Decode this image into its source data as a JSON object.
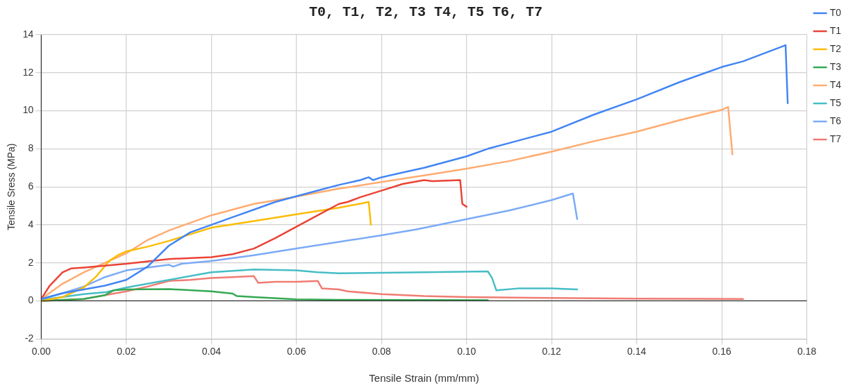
{
  "chart_data": {
    "type": "line",
    "title": "T0, T1, T2, T3 T4, T5 T6, T7",
    "xlabel": "Tensile Strain (mm/mm)",
    "ylabel": "Tensile Sress (MPa)",
    "xlim": [
      0,
      0.18
    ],
    "xticks": [
      {
        "value": 0,
        "label": "0.00"
      },
      {
        "value": 0.02,
        "label": "0.02"
      },
      {
        "value": 0.04,
        "label": "0.04"
      },
      {
        "value": 0.06,
        "label": "0.06"
      },
      {
        "value": 0.08,
        "label": "0.08"
      },
      {
        "value": 0.1,
        "label": "0.10"
      },
      {
        "value": 0.12,
        "label": "0.12"
      },
      {
        "value": 0.14,
        "label": "0.14"
      },
      {
        "value": 0.16,
        "label": "0.16"
      },
      {
        "value": 0.18,
        "label": "0.18"
      }
    ],
    "ylim": [
      -2,
      14
    ],
    "yticks": [
      -2,
      0,
      2,
      4,
      6,
      8,
      10,
      12,
      14
    ],
    "grid": true,
    "legend": "right",
    "marker": "none",
    "line_style": "solid",
    "series": [
      {
        "name": "T0",
        "color": "#4285f4",
        "x": [
          0,
          0.005,
          0.01,
          0.015,
          0.02,
          0.025,
          0.03,
          0.035,
          0.04,
          0.045,
          0.05,
          0.055,
          0.06,
          0.065,
          0.07,
          0.075,
          0.077,
          0.078,
          0.08,
          0.085,
          0.09,
          0.095,
          0.1,
          0.105,
          0.11,
          0.115,
          0.12,
          0.13,
          0.14,
          0.15,
          0.16,
          0.165,
          0.175,
          0.1755
        ],
        "values": [
          0.1,
          0.4,
          0.6,
          0.8,
          1.1,
          1.8,
          2.9,
          3.6,
          4.0,
          4.4,
          4.8,
          5.2,
          5.5,
          5.8,
          6.1,
          6.35,
          6.5,
          6.35,
          6.5,
          6.75,
          7.0,
          7.3,
          7.6,
          8.0,
          8.3,
          8.6,
          8.9,
          9.8,
          10.6,
          11.5,
          12.3,
          12.6,
          13.45,
          10.4
        ]
      },
      {
        "name": "T1",
        "color": "#ea4335",
        "x": [
          0,
          0.002,
          0.005,
          0.007,
          0.01,
          0.015,
          0.02,
          0.03,
          0.04,
          0.045,
          0.05,
          0.055,
          0.06,
          0.065,
          0.07,
          0.072,
          0.075,
          0.08,
          0.085,
          0.09,
          0.092,
          0.0985,
          0.099,
          0.1
        ],
        "values": [
          0.1,
          0.8,
          1.5,
          1.7,
          1.75,
          1.85,
          1.95,
          2.2,
          2.3,
          2.45,
          2.75,
          3.3,
          3.9,
          4.5,
          5.1,
          5.2,
          5.45,
          5.8,
          6.15,
          6.35,
          6.3,
          6.35,
          5.1,
          4.95
        ]
      },
      {
        "name": "T2",
        "color": "#fbbc04",
        "x": [
          0,
          0.005,
          0.01,
          0.013,
          0.016,
          0.018,
          0.02,
          0.025,
          0.03,
          0.035,
          0.04,
          0.05,
          0.06,
          0.07,
          0.077,
          0.0775
        ],
        "values": [
          0,
          0.2,
          0.7,
          1.3,
          2.1,
          2.4,
          2.6,
          2.85,
          3.15,
          3.5,
          3.85,
          4.2,
          4.55,
          4.9,
          5.2,
          4.0
        ]
      },
      {
        "name": "T3",
        "color": "#34a853",
        "x": [
          0,
          0.01,
          0.015,
          0.017,
          0.02,
          0.03,
          0.04,
          0.045,
          0.046,
          0.05,
          0.06,
          0.07,
          0.105
        ],
        "values": [
          0,
          0.1,
          0.3,
          0.55,
          0.6,
          0.62,
          0.5,
          0.38,
          0.25,
          0.2,
          0.08,
          0.05,
          0.03
        ]
      },
      {
        "name": "T4",
        "color": "#ffab70",
        "x": [
          0,
          0.005,
          0.01,
          0.015,
          0.02,
          0.025,
          0.03,
          0.035,
          0.04,
          0.045,
          0.05,
          0.058,
          0.07,
          0.08,
          0.09,
          0.1,
          0.11,
          0.12,
          0.13,
          0.14,
          0.15,
          0.16,
          0.1615,
          0.1625
        ],
        "values": [
          0.1,
          0.9,
          1.5,
          2.0,
          2.5,
          3.2,
          3.7,
          4.1,
          4.5,
          4.8,
          5.1,
          5.4,
          5.9,
          6.25,
          6.6,
          6.95,
          7.35,
          7.85,
          8.4,
          8.9,
          9.5,
          10.05,
          10.2,
          7.7
        ]
      },
      {
        "name": "T5",
        "color": "#46bdc6",
        "x": [
          0,
          0.01,
          0.015,
          0.02,
          0.03,
          0.04,
          0.05,
          0.06,
          0.065,
          0.07,
          0.08,
          0.09,
          0.105,
          0.106,
          0.107,
          0.112,
          0.12,
          0.126
        ],
        "values": [
          0.05,
          0.35,
          0.45,
          0.7,
          1.1,
          1.5,
          1.65,
          1.6,
          1.5,
          1.45,
          1.48,
          1.5,
          1.55,
          1.2,
          0.55,
          0.65,
          0.65,
          0.6
        ]
      },
      {
        "name": "T6",
        "color": "#7baaf7",
        "x": [
          0,
          0.005,
          0.01,
          0.015,
          0.02,
          0.025,
          0.03,
          0.031,
          0.033,
          0.04,
          0.05,
          0.06,
          0.07,
          0.08,
          0.088,
          0.1,
          0.11,
          0.12,
          0.125,
          0.126
        ],
        "values": [
          0.1,
          0.4,
          0.75,
          1.25,
          1.6,
          1.75,
          1.9,
          1.8,
          1.95,
          2.1,
          2.4,
          2.75,
          3.1,
          3.45,
          3.75,
          4.3,
          4.75,
          5.3,
          5.65,
          4.3
        ]
      },
      {
        "name": "T7",
        "color": "#f07b72",
        "x": [
          0,
          0.01,
          0.02,
          0.025,
          0.03,
          0.035,
          0.04,
          0.045,
          0.05,
          0.051,
          0.055,
          0.06,
          0.065,
          0.066,
          0.07,
          0.072,
          0.08,
          0.09,
          0.1,
          0.12,
          0.14,
          0.165
        ],
        "values": [
          0,
          0.1,
          0.5,
          0.75,
          1.05,
          1.1,
          1.2,
          1.25,
          1.3,
          0.95,
          1.0,
          1.0,
          1.05,
          0.65,
          0.6,
          0.5,
          0.35,
          0.25,
          0.2,
          0.15,
          0.12,
          0.1
        ]
      }
    ]
  }
}
